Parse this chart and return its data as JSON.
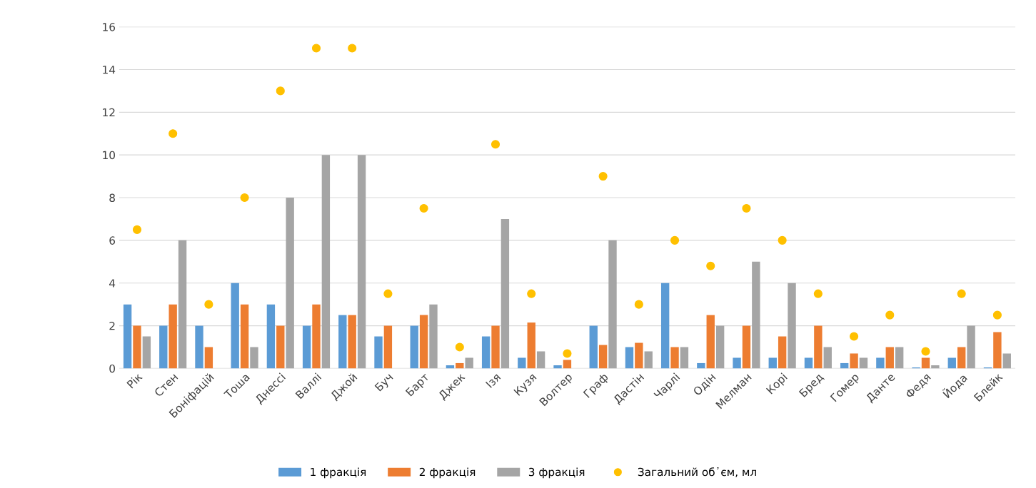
{
  "chart_data": {
    "type": "bar",
    "categories": [
      "Рік",
      "Стен",
      "Боніфацій",
      "Тоша",
      "Днессі",
      "Валлі",
      "Джой",
      "Буч",
      "Барт",
      "Джек",
      "Ізя",
      "Кузя",
      "Волтер",
      "Граф",
      "Дастін",
      "Чарлі",
      "Одін",
      "Мелман",
      "Корі",
      "Бред",
      "Гомер",
      "Данте",
      "Федя",
      "Йода",
      "Блейк"
    ],
    "series": [
      {
        "name": "1 фракція",
        "color": "#5b9bd5",
        "values": [
          3,
          2,
          2,
          4,
          3,
          2,
          2.5,
          1.5,
          2,
          0.15,
          1.5,
          0.5,
          0.15,
          2,
          1,
          4,
          0.25,
          0.5,
          0.5,
          0.5,
          0.25,
          0.5,
          0.05,
          0.5,
          0.05
        ]
      },
      {
        "name": "2 фракція",
        "color": "#ed7d31",
        "values": [
          2,
          3,
          1,
          3,
          2,
          3,
          2.5,
          2,
          2.5,
          0.25,
          2,
          2.15,
          0.4,
          1.1,
          1.2,
          1,
          2.5,
          2,
          1.5,
          2,
          0.7,
          1,
          0.5,
          1,
          1.7
        ]
      },
      {
        "name": "3 фракція",
        "color": "#a5a5a5",
        "values": [
          1.5,
          6,
          0,
          1,
          8,
          10,
          10,
          0,
          3,
          0.5,
          7,
          0.8,
          0,
          6,
          0.8,
          1,
          2,
          5,
          4,
          1,
          0.5,
          1,
          0.15,
          2,
          0.7
        ]
      },
      {
        "name": "Загальний об᾿єм, мл",
        "type": "scatter",
        "color": "#ffc000",
        "values": [
          6.5,
          11,
          3,
          8,
          13,
          15,
          15,
          3.5,
          7.5,
          1,
          10.5,
          3.5,
          0.7,
          9,
          3,
          6,
          4.8,
          7.5,
          6,
          3.5,
          1.5,
          2.5,
          0.8,
          3.5,
          2.5
        ]
      }
    ],
    "ylim": [
      0,
      16
    ],
    "yticks": [
      0,
      2,
      4,
      6,
      8,
      10,
      12,
      14,
      16
    ],
    "grid": "y",
    "legend": "bottom",
    "marker": "circle"
  }
}
